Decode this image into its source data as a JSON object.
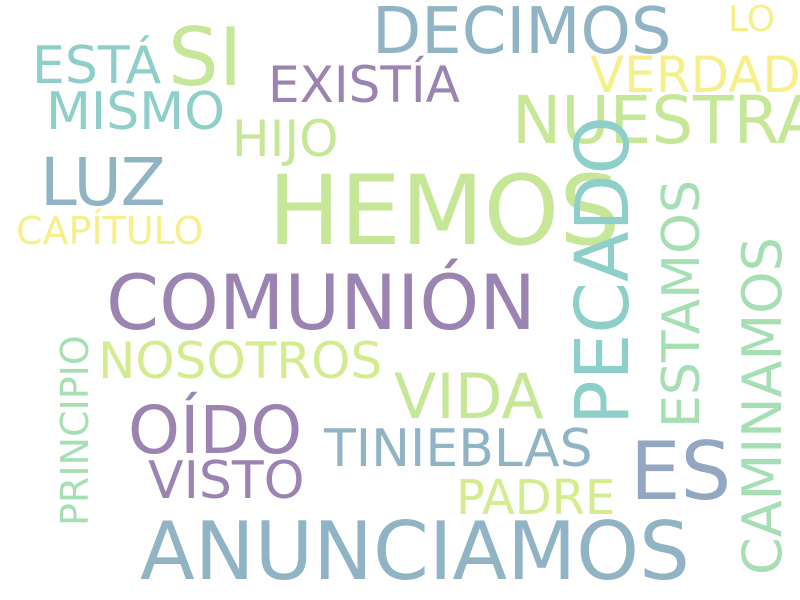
{
  "words": [
    {
      "text": "HEMOS",
      "color": "#c6e797"
    },
    {
      "text": "ANUNCIAMOS",
      "color": "#90b4c4"
    },
    {
      "text": "COMUNIÓN",
      "color": "#9b84b2"
    },
    {
      "text": "PECADO",
      "color": "#8ecfc9"
    },
    {
      "text": "SI",
      "color": "#c6e797"
    },
    {
      "text": "DECIMOS",
      "color": "#90b4c4"
    },
    {
      "text": "ES",
      "color": "#93a6c2"
    },
    {
      "text": "NUESTRA",
      "color": "#c6e797"
    },
    {
      "text": "LUZ",
      "color": "#90b4c4"
    },
    {
      "text": "OÍDO",
      "color": "#9b84b2"
    },
    {
      "text": "VIDA",
      "color": "#c6e797"
    },
    {
      "text": "CAMINAMOS",
      "color": "#a6dfb4"
    },
    {
      "text": "EXISTÍA",
      "color": "#9b84b2"
    },
    {
      "text": "TINIEBLAS",
      "color": "#90b4c4"
    },
    {
      "text": "VISTO",
      "color": "#9b84b2"
    },
    {
      "text": "NOSOTROS",
      "color": "#d4ec8f"
    },
    {
      "text": "ESTÁ",
      "color": "#8ecfc9"
    },
    {
      "text": "MISMO",
      "color": "#8ecfc9"
    },
    {
      "text": "VERDAD",
      "color": "#f6f08b"
    },
    {
      "text": "HIJO",
      "color": "#c6e797"
    },
    {
      "text": "ESTAMOS",
      "color": "#a6dfb4"
    },
    {
      "text": "PADRE",
      "color": "#d4ec8f"
    },
    {
      "text": "PRINCIPIO",
      "color": "#a6dfb4"
    },
    {
      "text": "CAPÍTULO",
      "color": "#f6f08b"
    },
    {
      "text": "LO",
      "color": "#f6f08b"
    }
  ]
}
